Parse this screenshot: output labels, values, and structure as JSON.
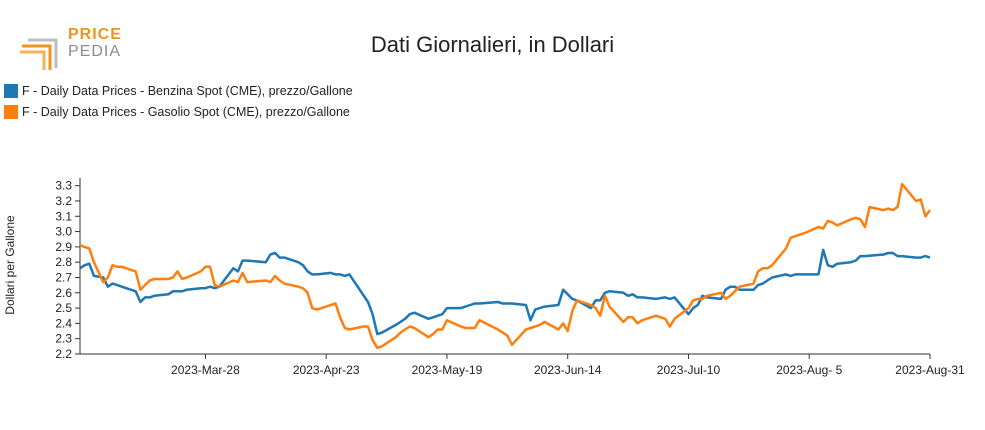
{
  "logo": {
    "line1": "PRICE",
    "line2": "PEDIA"
  },
  "chart_data": {
    "type": "line",
    "title": "Dati Giornalieri, in Dollari",
    "xlabel": "",
    "ylabel": "Dollari per Gallone",
    "ylim": [
      2.2,
      3.35
    ],
    "yticks": [
      "2.2",
      "2.3",
      "2.4",
      "2.5",
      "2.6",
      "2.7",
      "2.8",
      "2.9",
      "3.0",
      "3.1",
      "3.2",
      "3.3"
    ],
    "x_range": [
      "2023-03-01",
      "2023-08-31"
    ],
    "xticks": [
      {
        "date": "2023-03-28",
        "label": "2023-Mar-28"
      },
      {
        "date": "2023-04-23",
        "label": "2023-Apr-23"
      },
      {
        "date": "2023-05-19",
        "label": "2023-May-19"
      },
      {
        "date": "2023-06-14",
        "label": "2023-Jun-14"
      },
      {
        "date": "2023-07-10",
        "label": "2023-Jul-10"
      },
      {
        "date": "2023-08-05",
        "label": "2023-Aug- 5"
      },
      {
        "date": "2023-08-31",
        "label": "2023-Aug-31"
      }
    ],
    "legend_position": "top-left",
    "series": [
      {
        "name": "F - Daily Data Prices - Benzina Spot (CME), prezzo/Gallone",
        "color": "#1f77b4",
        "points": [
          [
            "2023-03-01",
            2.76
          ],
          [
            "2023-03-02",
            2.78
          ],
          [
            "2023-03-03",
            2.79
          ],
          [
            "2023-03-04",
            2.71
          ],
          [
            "2023-03-06",
            2.7
          ],
          [
            "2023-03-07",
            2.64
          ],
          [
            "2023-03-08",
            2.66
          ],
          [
            "2023-03-09",
            2.65
          ],
          [
            "2023-03-10",
            2.64
          ],
          [
            "2023-03-13",
            2.61
          ],
          [
            "2023-03-14",
            2.54
          ],
          [
            "2023-03-15",
            2.57
          ],
          [
            "2023-03-16",
            2.57
          ],
          [
            "2023-03-17",
            2.58
          ],
          [
            "2023-03-20",
            2.59
          ],
          [
            "2023-03-21",
            2.61
          ],
          [
            "2023-03-22",
            2.61
          ],
          [
            "2023-03-23",
            2.61
          ],
          [
            "2023-03-24",
            2.62
          ],
          [
            "2023-03-27",
            2.63
          ],
          [
            "2023-03-28",
            2.63
          ],
          [
            "2023-03-29",
            2.64
          ],
          [
            "2023-03-30",
            2.63
          ],
          [
            "2023-03-31",
            2.64
          ],
          [
            "2023-04-03",
            2.76
          ],
          [
            "2023-04-04",
            2.74
          ],
          [
            "2023-04-05",
            2.81
          ],
          [
            "2023-04-06",
            2.81
          ],
          [
            "2023-04-10",
            2.8
          ],
          [
            "2023-04-11",
            2.85
          ],
          [
            "2023-04-12",
            2.86
          ],
          [
            "2023-04-13",
            2.83
          ],
          [
            "2023-04-14",
            2.83
          ],
          [
            "2023-04-17",
            2.8
          ],
          [
            "2023-04-18",
            2.78
          ],
          [
            "2023-04-19",
            2.74
          ],
          [
            "2023-04-20",
            2.72
          ],
          [
            "2023-04-21",
            2.72
          ],
          [
            "2023-04-24",
            2.73
          ],
          [
            "2023-04-25",
            2.72
          ],
          [
            "2023-04-26",
            2.72
          ],
          [
            "2023-04-27",
            2.71
          ],
          [
            "2023-04-28",
            2.72
          ],
          [
            "2023-05-02",
            2.54
          ],
          [
            "2023-05-03",
            2.46
          ],
          [
            "2023-05-04",
            2.33
          ],
          [
            "2023-05-05",
            2.34
          ],
          [
            "2023-05-08",
            2.39
          ],
          [
            "2023-05-09",
            2.41
          ],
          [
            "2023-05-10",
            2.43
          ],
          [
            "2023-05-11",
            2.46
          ],
          [
            "2023-05-12",
            2.47
          ],
          [
            "2023-05-15",
            2.43
          ],
          [
            "2023-05-16",
            2.44
          ],
          [
            "2023-05-17",
            2.45
          ],
          [
            "2023-05-18",
            2.46
          ],
          [
            "2023-05-19",
            2.5
          ],
          [
            "2023-05-22",
            2.5
          ],
          [
            "2023-05-23",
            2.51
          ],
          [
            "2023-05-24",
            2.52
          ],
          [
            "2023-05-25",
            2.53
          ],
          [
            "2023-05-26",
            2.53
          ],
          [
            "2023-05-30",
            2.54
          ],
          [
            "2023-05-31",
            2.53
          ],
          [
            "2023-06-01",
            2.53
          ],
          [
            "2023-06-02",
            2.53
          ],
          [
            "2023-06-05",
            2.52
          ],
          [
            "2023-06-06",
            2.42
          ],
          [
            "2023-06-07",
            2.49
          ],
          [
            "2023-06-08",
            2.5
          ],
          [
            "2023-06-09",
            2.51
          ],
          [
            "2023-06-12",
            2.52
          ],
          [
            "2023-06-13",
            2.62
          ],
          [
            "2023-06-14",
            2.59
          ],
          [
            "2023-06-15",
            2.56
          ],
          [
            "2023-06-16",
            2.55
          ],
          [
            "2023-06-19",
            2.5
          ],
          [
            "2023-06-20",
            2.55
          ],
          [
            "2023-06-21",
            2.55
          ],
          [
            "2023-06-22",
            2.6
          ],
          [
            "2023-06-23",
            2.61
          ],
          [
            "2023-06-26",
            2.6
          ],
          [
            "2023-06-27",
            2.58
          ],
          [
            "2023-06-28",
            2.59
          ],
          [
            "2023-06-29",
            2.57
          ],
          [
            "2023-06-30",
            2.57
          ],
          [
            "2023-07-03",
            2.56
          ],
          [
            "2023-07-05",
            2.57
          ],
          [
            "2023-07-06",
            2.56
          ],
          [
            "2023-07-07",
            2.57
          ],
          [
            "2023-07-10",
            2.46
          ],
          [
            "2023-07-11",
            2.5
          ],
          [
            "2023-07-12",
            2.52
          ],
          [
            "2023-07-13",
            2.58
          ],
          [
            "2023-07-14",
            2.57
          ],
          [
            "2023-07-17",
            2.56
          ],
          [
            "2023-07-18",
            2.62
          ],
          [
            "2023-07-19",
            2.64
          ],
          [
            "2023-07-20",
            2.64
          ],
          [
            "2023-07-21",
            2.62
          ],
          [
            "2023-07-24",
            2.62
          ],
          [
            "2023-07-25",
            2.65
          ],
          [
            "2023-07-26",
            2.66
          ],
          [
            "2023-07-27",
            2.68
          ],
          [
            "2023-07-28",
            2.7
          ],
          [
            "2023-07-31",
            2.72
          ],
          [
            "2023-08-01",
            2.71
          ],
          [
            "2023-08-02",
            2.72
          ],
          [
            "2023-08-03",
            2.72
          ],
          [
            "2023-08-04",
            2.72
          ],
          [
            "2023-08-07",
            2.72
          ],
          [
            "2023-08-08",
            2.88
          ],
          [
            "2023-08-09",
            2.78
          ],
          [
            "2023-08-10",
            2.77
          ],
          [
            "2023-08-11",
            2.79
          ],
          [
            "2023-08-14",
            2.8
          ],
          [
            "2023-08-15",
            2.81
          ],
          [
            "2023-08-16",
            2.84
          ],
          [
            "2023-08-17",
            2.84
          ],
          [
            "2023-08-21",
            2.85
          ],
          [
            "2023-08-22",
            2.86
          ],
          [
            "2023-08-23",
            2.86
          ],
          [
            "2023-08-24",
            2.84
          ],
          [
            "2023-08-25",
            2.84
          ],
          [
            "2023-08-28",
            2.83
          ],
          [
            "2023-08-29",
            2.83
          ],
          [
            "2023-08-30",
            2.84
          ],
          [
            "2023-08-31",
            2.83
          ]
        ]
      },
      {
        "name": "F - Daily Data Prices - Gasolio Spot (CME), prezzo/Gallone",
        "color": "#ff7f0e",
        "points": [
          [
            "2023-03-01",
            2.91
          ],
          [
            "2023-03-02",
            2.9
          ],
          [
            "2023-03-03",
            2.89
          ],
          [
            "2023-03-04",
            2.8
          ],
          [
            "2023-03-06",
            2.67
          ],
          [
            "2023-03-07",
            2.7
          ],
          [
            "2023-03-08",
            2.78
          ],
          [
            "2023-03-09",
            2.77
          ],
          [
            "2023-03-10",
            2.77
          ],
          [
            "2023-03-13",
            2.74
          ],
          [
            "2023-03-14",
            2.62
          ],
          [
            "2023-03-15",
            2.65
          ],
          [
            "2023-03-16",
            2.68
          ],
          [
            "2023-03-17",
            2.69
          ],
          [
            "2023-03-20",
            2.69
          ],
          [
            "2023-03-21",
            2.7
          ],
          [
            "2023-03-22",
            2.74
          ],
          [
            "2023-03-23",
            2.69
          ],
          [
            "2023-03-24",
            2.7
          ],
          [
            "2023-03-27",
            2.74
          ],
          [
            "2023-03-28",
            2.77
          ],
          [
            "2023-03-29",
            2.77
          ],
          [
            "2023-03-30",
            2.65
          ],
          [
            "2023-03-31",
            2.64
          ],
          [
            "2023-04-03",
            2.68
          ],
          [
            "2023-04-04",
            2.67
          ],
          [
            "2023-04-05",
            2.73
          ],
          [
            "2023-04-06",
            2.67
          ],
          [
            "2023-04-10",
            2.68
          ],
          [
            "2023-04-11",
            2.67
          ],
          [
            "2023-04-12",
            2.71
          ],
          [
            "2023-04-13",
            2.68
          ],
          [
            "2023-04-14",
            2.66
          ],
          [
            "2023-04-17",
            2.64
          ],
          [
            "2023-04-18",
            2.63
          ],
          [
            "2023-04-19",
            2.6
          ],
          [
            "2023-04-20",
            2.5
          ],
          [
            "2023-04-21",
            2.49
          ],
          [
            "2023-04-24",
            2.52
          ],
          [
            "2023-04-25",
            2.53
          ],
          [
            "2023-04-26",
            2.44
          ],
          [
            "2023-04-27",
            2.37
          ],
          [
            "2023-04-28",
            2.36
          ],
          [
            "2023-05-01",
            2.38
          ],
          [
            "2023-05-02",
            2.38
          ],
          [
            "2023-05-03",
            2.29
          ],
          [
            "2023-05-04",
            2.24
          ],
          [
            "2023-05-05",
            2.25
          ],
          [
            "2023-05-08",
            2.31
          ],
          [
            "2023-05-09",
            2.34
          ],
          [
            "2023-05-10",
            2.36
          ],
          [
            "2023-05-11",
            2.38
          ],
          [
            "2023-05-12",
            2.37
          ],
          [
            "2023-05-15",
            2.31
          ],
          [
            "2023-05-16",
            2.33
          ],
          [
            "2023-05-17",
            2.36
          ],
          [
            "2023-05-18",
            2.36
          ],
          [
            "2023-05-19",
            2.42
          ],
          [
            "2023-05-22",
            2.38
          ],
          [
            "2023-05-23",
            2.37
          ],
          [
            "2023-05-24",
            2.37
          ],
          [
            "2023-05-25",
            2.37
          ],
          [
            "2023-05-26",
            2.42
          ],
          [
            "2023-05-30",
            2.36
          ],
          [
            "2023-05-31",
            2.34
          ],
          [
            "2023-06-01",
            2.32
          ],
          [
            "2023-06-02",
            2.26
          ],
          [
            "2023-06-05",
            2.36
          ],
          [
            "2023-06-06",
            2.37
          ],
          [
            "2023-06-07",
            2.38
          ],
          [
            "2023-06-08",
            2.39
          ],
          [
            "2023-06-09",
            2.41
          ],
          [
            "2023-06-12",
            2.36
          ],
          [
            "2023-06-13",
            2.4
          ],
          [
            "2023-06-14",
            2.35
          ],
          [
            "2023-06-15",
            2.48
          ],
          [
            "2023-06-16",
            2.55
          ],
          [
            "2023-06-19",
            2.52
          ],
          [
            "2023-06-20",
            2.5
          ],
          [
            "2023-06-21",
            2.45
          ],
          [
            "2023-06-22",
            2.58
          ],
          [
            "2023-06-23",
            2.51
          ],
          [
            "2023-06-26",
            2.41
          ],
          [
            "2023-06-27",
            2.44
          ],
          [
            "2023-06-28",
            2.44
          ],
          [
            "2023-06-29",
            2.4
          ],
          [
            "2023-06-30",
            2.42
          ],
          [
            "2023-07-03",
            2.45
          ],
          [
            "2023-07-05",
            2.43
          ],
          [
            "2023-07-06",
            2.38
          ],
          [
            "2023-07-07",
            2.43
          ],
          [
            "2023-07-10",
            2.5
          ],
          [
            "2023-07-11",
            2.55
          ],
          [
            "2023-07-12",
            2.56
          ],
          [
            "2023-07-13",
            2.56
          ],
          [
            "2023-07-14",
            2.58
          ],
          [
            "2023-07-17",
            2.6
          ],
          [
            "2023-07-18",
            2.56
          ],
          [
            "2023-07-19",
            2.58
          ],
          [
            "2023-07-20",
            2.61
          ],
          [
            "2023-07-21",
            2.64
          ],
          [
            "2023-07-24",
            2.66
          ],
          [
            "2023-07-25",
            2.74
          ],
          [
            "2023-07-26",
            2.76
          ],
          [
            "2023-07-27",
            2.76
          ],
          [
            "2023-07-28",
            2.78
          ],
          [
            "2023-07-31",
            2.89
          ],
          [
            "2023-08-01",
            2.96
          ],
          [
            "2023-08-02",
            2.97
          ],
          [
            "2023-08-03",
            2.98
          ],
          [
            "2023-08-04",
            2.99
          ],
          [
            "2023-08-07",
            3.03
          ],
          [
            "2023-08-08",
            3.02
          ],
          [
            "2023-08-09",
            3.07
          ],
          [
            "2023-08-10",
            3.06
          ],
          [
            "2023-08-11",
            3.04
          ],
          [
            "2023-08-14",
            3.08
          ],
          [
            "2023-08-15",
            3.09
          ],
          [
            "2023-08-16",
            3.08
          ],
          [
            "2023-08-17",
            3.03
          ],
          [
            "2023-08-18",
            3.16
          ],
          [
            "2023-08-21",
            3.14
          ],
          [
            "2023-08-22",
            3.15
          ],
          [
            "2023-08-23",
            3.14
          ],
          [
            "2023-08-24",
            3.16
          ],
          [
            "2023-08-25",
            3.31
          ],
          [
            "2023-08-28",
            3.2
          ],
          [
            "2023-08-29",
            3.21
          ],
          [
            "2023-08-30",
            3.1
          ],
          [
            "2023-08-31",
            3.14
          ]
        ]
      }
    ]
  }
}
